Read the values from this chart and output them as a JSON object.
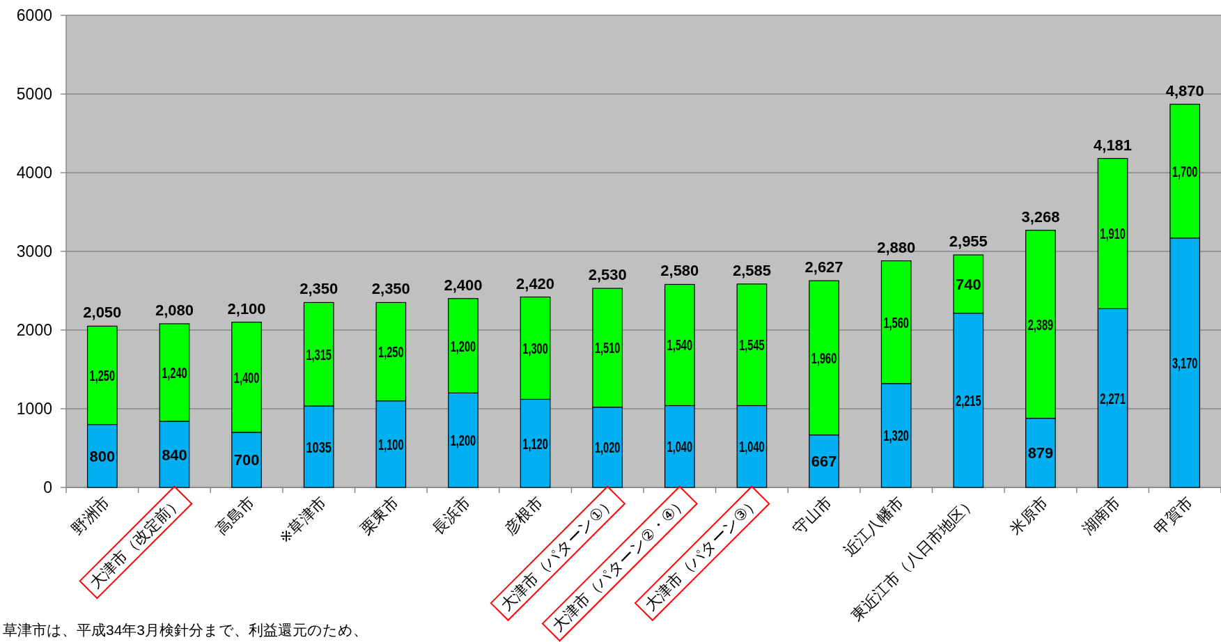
{
  "chart_data": {
    "type": "bar",
    "stacked": true,
    "categories": [
      "野洲市",
      "大津市（改定前）",
      "高島市",
      "※草津市",
      "栗東市",
      "長浜市",
      "彦根市",
      "大津市（パターン①）",
      "大津市（パターン②・④）",
      "大津市（パターン③）",
      "守山市",
      "近江八幡市",
      "東近江市（八日市地区）",
      "米原市",
      "湖南市",
      "甲賀市"
    ],
    "series": [
      {
        "color": "#00b0f0",
        "values": [
          800,
          840,
          700,
          1035,
          1100,
          1200,
          1120,
          1020,
          1040,
          1040,
          667,
          1320,
          2215,
          879,
          2271,
          3170
        ],
        "value_labels": [
          "800",
          "840",
          "700",
          "1035",
          "1,100",
          "1,200",
          "1,120",
          "1,020",
          "1,040",
          "1,040",
          "667",
          "1,320",
          "2,215",
          "879",
          "2,271",
          "3,170"
        ]
      },
      {
        "color": "#00ff00",
        "values": [
          1250,
          1240,
          1400,
          1315,
          1250,
          1200,
          1300,
          1510,
          1540,
          1545,
          1960,
          1560,
          740,
          2389,
          1910,
          1700
        ],
        "value_labels": [
          "1,250",
          "1,240",
          "1,400",
          "1,315",
          "1,250",
          "1,200",
          "1,300",
          "1,510",
          "1,540",
          "1,545",
          "1,960",
          "1,560",
          "740",
          "2,389",
          "1,910",
          "1,700"
        ]
      }
    ],
    "totals": [
      "2,050",
      "2,080",
      "2,100",
      "2,350",
      "2,350",
      "2,400",
      "2,420",
      "2,530",
      "2,580",
      "2,585",
      "2,627",
      "2,880",
      "2,955",
      "3,268",
      "4,181",
      "4,870"
    ],
    "ylim": [
      0,
      6000
    ],
    "yticks": [
      0,
      1000,
      2000,
      3000,
      4000,
      5000,
      6000
    ],
    "grid": "y",
    "annotations": [
      "草津市は、平成34年3月検針分まで、利益還元のため、"
    ]
  }
}
